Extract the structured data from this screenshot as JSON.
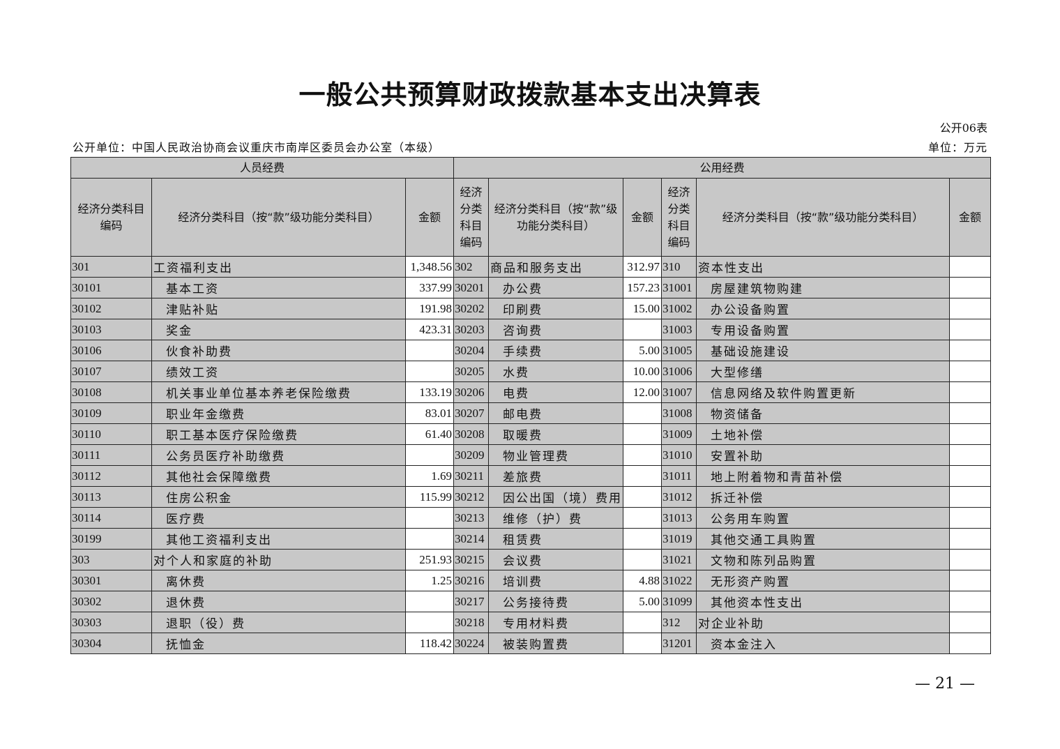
{
  "title": "一般公共预算财政拨款基本支出决算表",
  "table_no": "公开06表",
  "unit_name": "公开单位：中国人民政治协商会议重庆市南岸区委员会办公室（本级）",
  "unit": "单位：万元",
  "headers": {
    "personnel": "人员经费",
    "public": "公用经费",
    "code": "经济分类科目编码",
    "code_short": "经济分类科目编码",
    "name": "经济分类科目（按“款”级功能分类科目）",
    "amount": "金额"
  },
  "rows": [
    {
      "c1": "301",
      "n1": "工资福利支出",
      "a1": "1,348.56",
      "c2": "302",
      "n2": "商品和服务支出",
      "a2": "312.97",
      "c3": "310",
      "n3": "资本性支出",
      "a3": ""
    },
    {
      "c1": "30101",
      "n1": "基本工资",
      "a1": "337.99",
      "c2": "30201",
      "n2": "办公费",
      "a2": "157.23",
      "c3": "31001",
      "n3": "房屋建筑物购建",
      "a3": ""
    },
    {
      "c1": "30102",
      "n1": "津贴补贴",
      "a1": "191.98",
      "c2": "30202",
      "n2": "印刷费",
      "a2": "15.00",
      "c3": "31002",
      "n3": "办公设备购置",
      "a3": ""
    },
    {
      "c1": "30103",
      "n1": "奖金",
      "a1": "423.31",
      "c2": "30203",
      "n2": "咨询费",
      "a2": "",
      "c3": "31003",
      "n3": "专用设备购置",
      "a3": ""
    },
    {
      "c1": "30106",
      "n1": "伙食补助费",
      "a1": "",
      "c2": "30204",
      "n2": "手续费",
      "a2": "5.00",
      "c3": "31005",
      "n3": "基础设施建设",
      "a3": ""
    },
    {
      "c1": "30107",
      "n1": "绩效工资",
      "a1": "",
      "c2": "30205",
      "n2": "水费",
      "a2": "10.00",
      "c3": "31006",
      "n3": "大型修缮",
      "a3": ""
    },
    {
      "c1": "30108",
      "n1": "机关事业单位基本养老保险缴费",
      "a1": "133.19",
      "c2": "30206",
      "n2": "电费",
      "a2": "12.00",
      "c3": "31007",
      "n3": "信息网络及软件购置更新",
      "a3": ""
    },
    {
      "c1": "30109",
      "n1": "职业年金缴费",
      "a1": "83.01",
      "c2": "30207",
      "n2": "邮电费",
      "a2": "",
      "c3": "31008",
      "n3": "物资储备",
      "a3": ""
    },
    {
      "c1": "30110",
      "n1": "职工基本医疗保险缴费",
      "a1": "61.40",
      "c2": "30208",
      "n2": "取暖费",
      "a2": "",
      "c3": "31009",
      "n3": "土地补偿",
      "a3": ""
    },
    {
      "c1": "30111",
      "n1": "公务员医疗补助缴费",
      "a1": "",
      "c2": "30209",
      "n2": "物业管理费",
      "a2": "",
      "c3": "31010",
      "n3": "安置补助",
      "a3": ""
    },
    {
      "c1": "30112",
      "n1": "其他社会保障缴费",
      "a1": "1.69",
      "c2": "30211",
      "n2": "差旅费",
      "a2": "",
      "c3": "31011",
      "n3": "地上附着物和青苗补偿",
      "a3": ""
    },
    {
      "c1": "30113",
      "n1": "住房公积金",
      "a1": "115.99",
      "c2": "30212",
      "n2": "因公出国（境）费用",
      "a2": "",
      "c3": "31012",
      "n3": "拆迁补偿",
      "a3": ""
    },
    {
      "c1": "30114",
      "n1": "医疗费",
      "a1": "",
      "c2": "30213",
      "n2": "维修（护）费",
      "a2": "",
      "c3": "31013",
      "n3": "公务用车购置",
      "a3": ""
    },
    {
      "c1": "30199",
      "n1": "其他工资福利支出",
      "a1": "",
      "c2": "30214",
      "n2": "租赁费",
      "a2": "",
      "c3": "31019",
      "n3": "其他交通工具购置",
      "a3": ""
    },
    {
      "c1": "303",
      "n1": "对个人和家庭的补助",
      "a1": "251.93",
      "c2": "30215",
      "n2": "会议费",
      "a2": "",
      "c3": "31021",
      "n3": "文物和陈列品购置",
      "a3": ""
    },
    {
      "c1": "30301",
      "n1": "离休费",
      "a1": "1.25",
      "c2": "30216",
      "n2": "培训费",
      "a2": "4.88",
      "c3": "31022",
      "n3": "无形资产购置",
      "a3": ""
    },
    {
      "c1": "30302",
      "n1": "退休费",
      "a1": "",
      "c2": "30217",
      "n2": "公务接待费",
      "a2": "5.00",
      "c3": "31099",
      "n3": "其他资本性支出",
      "a3": ""
    },
    {
      "c1": "30303",
      "n1": "退职（役）费",
      "a1": "",
      "c2": "30218",
      "n2": "专用材料费",
      "a2": "",
      "c3": "312",
      "n3": "对企业补助",
      "a3": ""
    },
    {
      "c1": "30304",
      "n1": "抚恤金",
      "a1": "118.42",
      "c2": "30224",
      "n2": "被装购置费",
      "a2": "",
      "c3": "31201",
      "n3": "资本金注入",
      "a3": ""
    }
  ],
  "page_number": "— 21 —"
}
